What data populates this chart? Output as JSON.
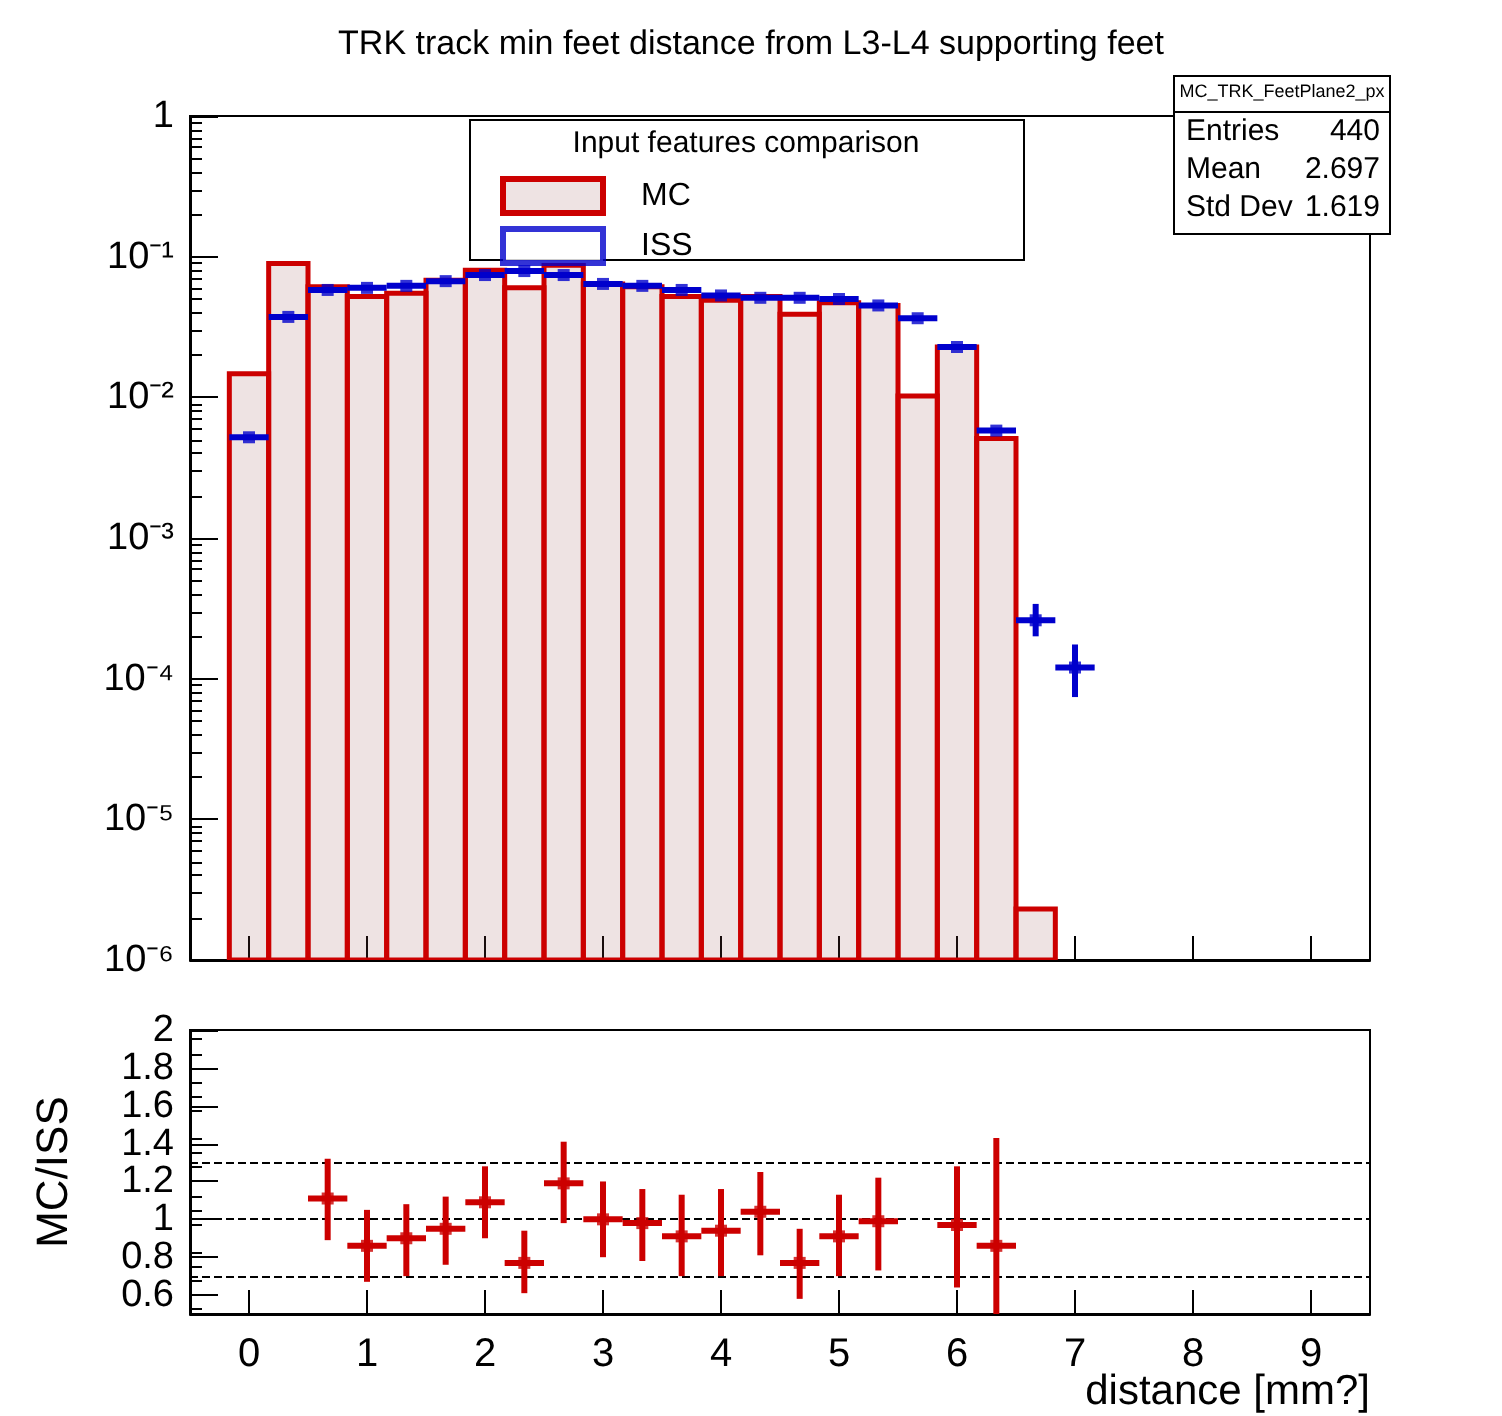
{
  "chart_data": [
    {
      "type": "histogram",
      "title": "TRK track min feet distance from L3-L4 supporting feet",
      "legend_title": "Input features comparison",
      "legend": "top",
      "log": true,
      "grid": false,
      "tick_labels": "y",
      "annotations": [
        "MC_TRK_FeetPlane2_px",
        "Entries",
        "440",
        "Mean",
        "2.697",
        "Std Dev",
        "1.619"
      ],
      "bins": [
        -0.1667,
        0.1667,
        0.5,
        0.8333,
        1.1667,
        1.5,
        1.8333,
        2.1667,
        2.5,
        2.8333,
        3.1667,
        3.5,
        3.8333,
        4.1667,
        4.5,
        4.8333,
        5.1667,
        5.5,
        5.8333,
        6.1667,
        6.5,
        6.8333
      ],
      "xlim": [
        -0.5,
        9.5
      ],
      "xticks": [
        0,
        1,
        2,
        3,
        4,
        5,
        6,
        7,
        8,
        9
      ],
      "ylim": [
        1e-06,
        1
      ],
      "yticks": [
        {
          "value": 1,
          "label": "1"
        },
        {
          "value": 0.1,
          "label": "10⁻¹"
        },
        {
          "value": 0.01,
          "label": "10⁻²"
        },
        {
          "value": 0.001,
          "label": "10⁻³"
        },
        {
          "value": 0.0001,
          "label": "10⁻⁴"
        },
        {
          "value": 1e-05,
          "label": "10⁻⁵"
        },
        {
          "value": 1e-06,
          "label": "10⁻⁶"
        }
      ],
      "series": [
        {
          "name": "MC",
          "type": "histogram",
          "color": "#cc0000",
          "values": [
            0.0147,
            0.0895,
            0.061,
            0.052,
            0.055,
            0.068,
            0.08,
            0.06,
            0.087,
            0.064,
            0.061,
            0.052,
            0.049,
            0.052,
            0.039,
            0.047,
            0.045,
            0.0102,
            0.0228,
            0.0051,
            2.3e-06
          ]
        },
        {
          "name": "ISS",
          "type": "scatter",
          "color": "#0000cc",
          "x": [
            0,
            0.3333,
            0.6667,
            1,
            1.3333,
            1.6667,
            2,
            2.3333,
            2.6667,
            3,
            3.3333,
            3.6667,
            4,
            4.3333,
            4.6667,
            5,
            5.3333,
            5.6667,
            6,
            6.3333,
            6.6667,
            7
          ],
          "values": [
            0.0052,
            0.0373,
            0.058,
            0.06,
            0.062,
            0.067,
            0.074,
            0.079,
            0.074,
            0.064,
            0.062,
            0.058,
            0.053,
            0.051,
            0.051,
            0.05,
            0.045,
            0.0365,
            0.0228,
            0.0058,
            0.00026,
            0.00012
          ],
          "xerrors": [
            0.1667,
            0.1667,
            0.1667,
            0.1667,
            0.1667,
            0.1667,
            0.1667,
            0.1667,
            0.1667,
            0.1667,
            0.1667,
            0.1667,
            0.1667,
            0.1667,
            0.1667,
            0.1667,
            0.1667,
            0.1667,
            0.1667,
            0.1667,
            0.1667,
            0.1667
          ],
          "errors": [
            null,
            null,
            null,
            null,
            null,
            null,
            null,
            null,
            null,
            null,
            null,
            null,
            null,
            null,
            null,
            null,
            null,
            null,
            null,
            null,
            [
              0.0002,
              0.00034
            ],
            [
              7.4e-05,
              0.000175
            ]
          ]
        }
      ]
    },
    {
      "type": "scatter",
      "xlabel": "distance [mm?]",
      "ylabel": "MC/ISS",
      "grid": false,
      "xlim": [
        -0.5,
        9.5
      ],
      "xticks": [
        0,
        1,
        2,
        3,
        4,
        5,
        6,
        7,
        8,
        9
      ],
      "ylim": [
        0.5,
        2
      ],
      "yticks": [
        0.6,
        0.8,
        1,
        1.2,
        1.4,
        1.6,
        1.8,
        2
      ],
      "ref_lines": [
        {
          "axis": "y",
          "value": 1.3,
          "color": "#000000",
          "line_style": "dashed"
        },
        {
          "axis": "y",
          "value": 1,
          "color": "#000000",
          "line_style": "dashed"
        },
        {
          "axis": "y",
          "value": 0.7,
          "color": "#000000",
          "line_style": "dashed"
        }
      ],
      "series": [
        {
          "color": "#cc0000",
          "x": [
            0.6667,
            1,
            1.3333,
            1.6667,
            2,
            2.3333,
            2.6667,
            3,
            3.3333,
            3.6667,
            4,
            4.3333,
            4.6667,
            5,
            5.3333,
            6,
            6.3333
          ],
          "values": [
            1.11,
            0.86,
            0.9,
            0.95,
            1.09,
            0.77,
            1.19,
            1.0,
            0.98,
            0.91,
            0.94,
            1.04,
            0.77,
            0.91,
            0.99,
            0.97,
            0.86
          ],
          "xerrors": [
            0.1667,
            0.1667,
            0.1667,
            0.1667,
            0.1667,
            0.1667,
            0.1667,
            0.1667,
            0.1667,
            0.1667,
            0.1667,
            0.1667,
            0.1667,
            0.1667,
            0.1667,
            0.1667,
            0.1667
          ],
          "errors": [
            [
              0.89,
              1.32
            ],
            [
              0.67,
              1.05
            ],
            [
              0.7,
              1.08
            ],
            [
              0.76,
              1.12
            ],
            [
              0.9,
              1.28
            ],
            [
              0.61,
              0.94
            ],
            [
              0.98,
              1.41
            ],
            [
              0.8,
              1.2
            ],
            [
              0.78,
              1.16
            ],
            [
              0.7,
              1.13
            ],
            [
              0.7,
              1.16
            ],
            [
              0.81,
              1.25
            ],
            [
              0.58,
              0.95
            ],
            [
              0.7,
              1.13
            ],
            [
              0.73,
              1.22
            ],
            [
              0.64,
              1.28
            ],
            [
              0.5,
              1.43
            ]
          ]
        }
      ]
    }
  ]
}
